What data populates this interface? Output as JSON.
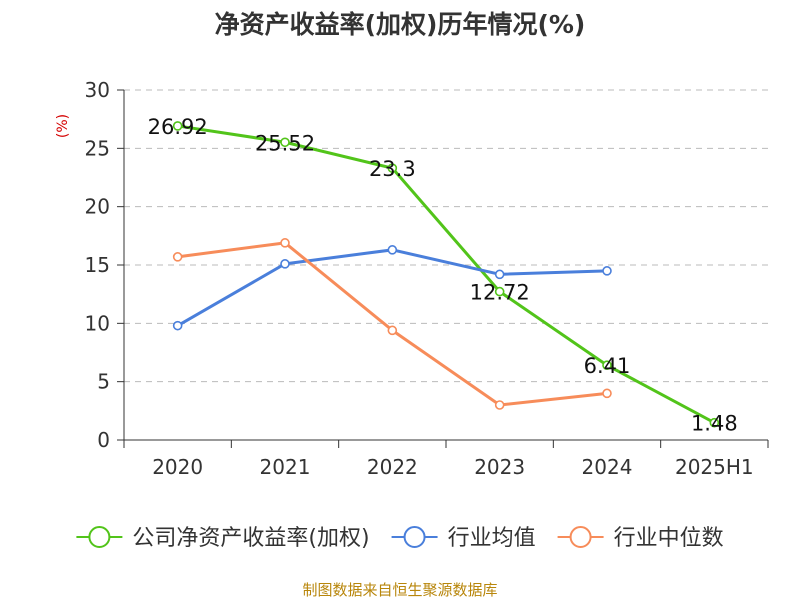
{
  "chart_data": {
    "type": "line",
    "title": "净资产收益率(加权)历年情况(%)",
    "ylabel": "(%)",
    "categories": [
      "2020",
      "2021",
      "2022",
      "2023",
      "2024",
      "2025H1"
    ],
    "ylim": [
      0,
      30
    ],
    "yticks": [
      0,
      5,
      10,
      15,
      20,
      25,
      30
    ],
    "grid": true,
    "legend_position": "bottom",
    "series": [
      {
        "name": "公司净资产收益率(加权)",
        "color": "#52c41a",
        "values": [
          26.92,
          25.52,
          23.3,
          12.72,
          6.41,
          1.48
        ],
        "data_labels": [
          "26.92",
          "25.52",
          "23.3",
          "12.72",
          "6.41",
          "1.48"
        ]
      },
      {
        "name": "行业均值",
        "color": "#4a7fdb",
        "values": [
          9.8,
          15.1,
          16.3,
          14.2,
          14.5,
          null
        ]
      },
      {
        "name": "行业中位数",
        "color": "#f78c5a",
        "values": [
          15.7,
          16.9,
          9.4,
          3.0,
          4.0,
          null
        ]
      }
    ]
  },
  "source": "制图数据来自恒生聚源数据库"
}
